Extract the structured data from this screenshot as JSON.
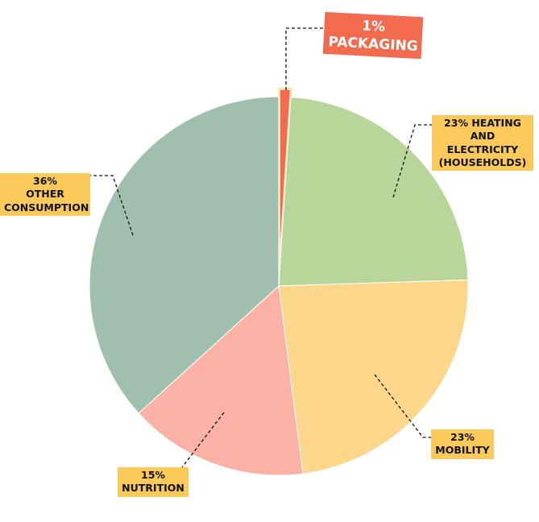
{
  "chart_data": {
    "type": "pie",
    "categories": [
      "PACKAGING",
      "HEATING AND ELECTRICITY (HOUSEHOLDS)",
      "MOBILITY",
      "NUTRITION",
      "OTHER CONSUMPTION"
    ],
    "values": [
      1,
      23,
      23,
      15,
      36
    ],
    "value_labels": [
      "1%",
      "23%",
      "23%",
      "15%",
      "36%"
    ],
    "colors": [
      "#f26b4f",
      "#b8d69a",
      "#fbd68b",
      "#fbb2a6",
      "#a0bfae"
    ]
  }
}
